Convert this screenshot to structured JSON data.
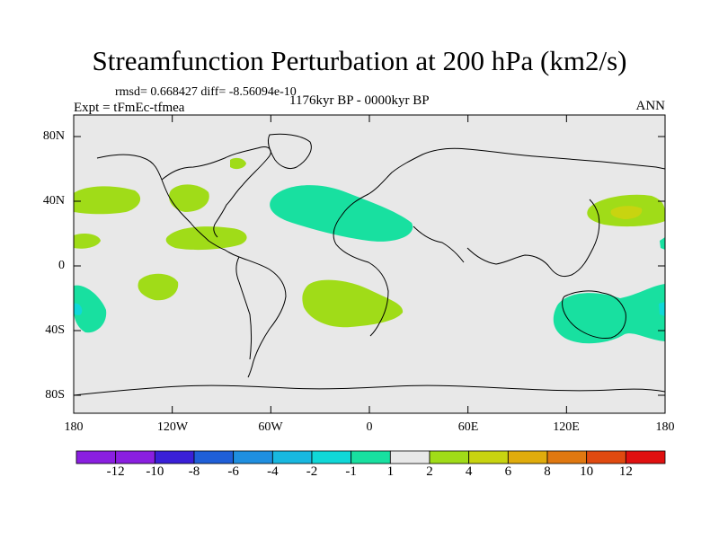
{
  "title": "Streamfunction Perturbation at 200 hPa (km2/s)",
  "stats": "rmsd= 0.668427 diff= -8.56094e-10",
  "experiment": "Expt = tFmEc-tfmea",
  "period": "1176kyr BP - 0000kyr BP",
  "season": "ANN",
  "axes": {
    "y_ticks": [
      "80N",
      "40N",
      "0",
      "40S",
      "80S"
    ],
    "x_ticks": [
      "180",
      "120W",
      "60W",
      "0",
      "60E",
      "120E",
      "180"
    ]
  },
  "colorbar": {
    "labels": [
      "-12",
      "-10",
      "-8",
      "-6",
      "-4",
      "-2",
      "-1",
      "1",
      "2",
      "4",
      "6",
      "8",
      "10",
      "12"
    ],
    "colors": [
      "#8a1fe0",
      "#3a20d8",
      "#1f5fd8",
      "#1f8fe0",
      "#18b8e0",
      "#10d8d8",
      "#18e0a0",
      "#e8e8e8",
      "#a0dc18",
      "#c8d410",
      "#e0ac0c",
      "#e07810",
      "#e04a10",
      "#e01010"
    ]
  },
  "colors": {
    "land_bg": "#e8e8e8",
    "neg_light": "#18e0a0",
    "pos_light": "#a0dc18",
    "pos_mid": "#c8d410",
    "neg_mid": "#10d8d8"
  }
}
